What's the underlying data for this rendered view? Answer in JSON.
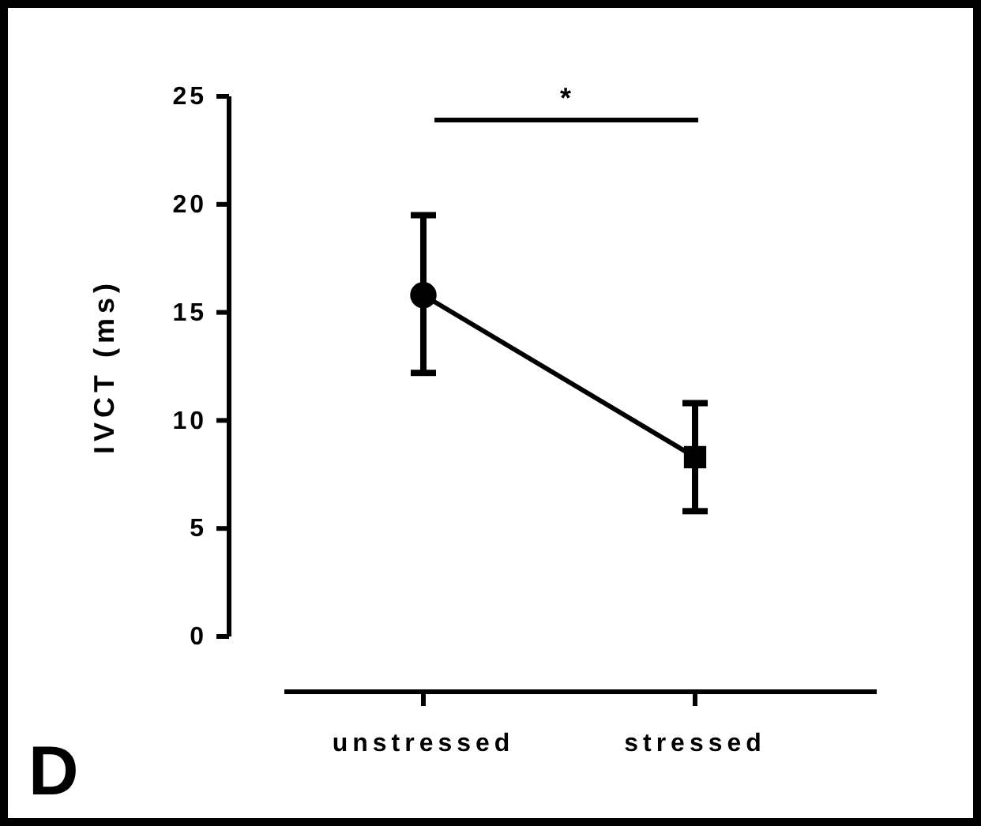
{
  "chart_data": {
    "type": "line",
    "categories": [
      "unstressed",
      "stressed"
    ],
    "ylabel": "IVCT (ms)",
    "ylim": [
      0,
      25
    ],
    "yticks": [
      0,
      5,
      10,
      15,
      20,
      25
    ],
    "series": [
      {
        "color": "#000000",
        "values": [
          15.8,
          8.3
        ],
        "marker": "none",
        "line_style": "solid"
      },
      {
        "type": "scatter",
        "color": "#000000",
        "values": [
          15.8,
          null
        ],
        "marker": "circle",
        "errors": [
          [
            12.2,
            19.5
          ],
          null
        ]
      },
      {
        "type": "scatter",
        "color": "#000000",
        "values": [
          null,
          8.3
        ],
        "marker": "square",
        "errors": [
          null,
          [
            5.8,
            10.8
          ]
        ]
      }
    ],
    "annotations": [
      "*",
      "D"
    ],
    "grid": false
  }
}
